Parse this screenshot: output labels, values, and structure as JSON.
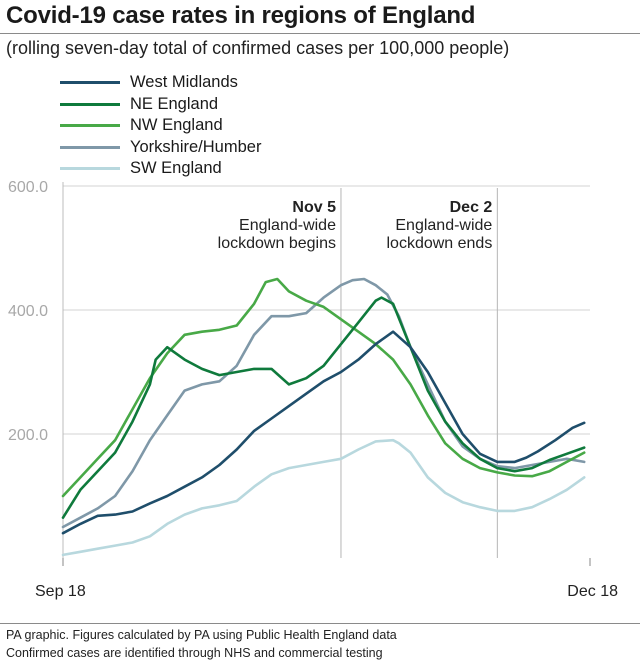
{
  "chart_data": {
    "type": "line",
    "title": "Covid-19 case rates in regions of England",
    "subtitle": "(rolling seven-day total of confirmed cases per 100,000 people)",
    "xlabel": "",
    "ylabel": "",
    "ylim": [
      0,
      600
    ],
    "xlim": [
      0,
      91
    ],
    "y_ticks": [
      {
        "value": 200,
        "label": "200.0"
      },
      {
        "value": 400,
        "label": "400.0"
      },
      {
        "value": 600,
        "label": "600.0"
      }
    ],
    "x_ticks": [
      {
        "day": 0,
        "label": "Sep 18"
      },
      {
        "day": 91,
        "label": "Dec 18"
      }
    ],
    "annotations": [
      {
        "day": 48,
        "bold": "Nov 5",
        "line1": "England-wide",
        "line2": "lockdown begins"
      },
      {
        "day": 75,
        "bold": "Dec 2",
        "line1": "England-wide",
        "line2": "lockdown ends"
      }
    ],
    "series": [
      {
        "name": "West Midlands",
        "color": "#1f4e6b",
        "x": [
          0,
          3,
          6,
          9,
          12,
          15,
          18,
          21,
          24,
          27,
          30,
          33,
          36,
          39,
          42,
          45,
          48,
          51,
          54,
          57,
          60,
          63,
          66,
          69,
          72,
          75,
          78,
          80,
          82,
          85,
          88,
          90
        ],
        "y": [
          40,
          55,
          68,
          70,
          75,
          88,
          100,
          115,
          130,
          150,
          175,
          205,
          225,
          245,
          265,
          285,
          300,
          320,
          345,
          365,
          340,
          300,
          250,
          200,
          168,
          155,
          155,
          162,
          172,
          190,
          210,
          218
        ]
      },
      {
        "name": "NE England",
        "color": "#0f7a3c",
        "x": [
          0,
          3,
          6,
          9,
          12,
          15,
          16,
          18,
          21,
          24,
          27,
          30,
          33,
          36,
          39,
          42,
          45,
          48,
          51,
          54,
          55,
          57,
          60,
          63,
          66,
          69,
          72,
          75,
          78,
          81,
          84,
          87,
          90
        ],
        "y": [
          65,
          110,
          140,
          170,
          220,
          280,
          320,
          340,
          320,
          305,
          295,
          300,
          305,
          305,
          280,
          290,
          310,
          345,
          380,
          415,
          420,
          410,
          340,
          270,
          220,
          185,
          160,
          145,
          140,
          145,
          158,
          168,
          178
        ]
      },
      {
        "name": "NW England",
        "color": "#48a947",
        "x": [
          0,
          3,
          6,
          9,
          12,
          15,
          18,
          21,
          24,
          27,
          30,
          33,
          35,
          37,
          39,
          42,
          45,
          48,
          51,
          54,
          57,
          60,
          63,
          66,
          69,
          72,
          75,
          78,
          81,
          84,
          87,
          90
        ],
        "y": [
          100,
          130,
          160,
          190,
          240,
          290,
          330,
          360,
          365,
          368,
          375,
          410,
          445,
          450,
          430,
          415,
          405,
          385,
          365,
          345,
          320,
          280,
          230,
          185,
          160,
          145,
          138,
          133,
          132,
          140,
          155,
          170
        ]
      },
      {
        "name": "Yorkshire/Humber",
        "color": "#7f98a8",
        "x": [
          0,
          3,
          6,
          9,
          12,
          15,
          18,
          21,
          24,
          27,
          30,
          33,
          36,
          39,
          42,
          45,
          48,
          50,
          52,
          54,
          56,
          58,
          60,
          63,
          66,
          69,
          72,
          75,
          78,
          81,
          84,
          87,
          90
        ],
        "y": [
          50,
          65,
          80,
          100,
          140,
          190,
          230,
          270,
          280,
          285,
          310,
          360,
          390,
          390,
          395,
          420,
          440,
          448,
          450,
          440,
          425,
          390,
          340,
          280,
          220,
          180,
          160,
          148,
          145,
          150,
          155,
          160,
          155
        ]
      },
      {
        "name": "SW England",
        "color": "#b8d8de",
        "x": [
          0,
          3,
          6,
          9,
          12,
          15,
          18,
          21,
          24,
          27,
          30,
          33,
          36,
          39,
          42,
          45,
          48,
          51,
          54,
          57,
          58,
          60,
          63,
          66,
          69,
          72,
          75,
          78,
          81,
          84,
          87,
          90
        ],
        "y": [
          5,
          10,
          15,
          20,
          25,
          35,
          55,
          70,
          80,
          85,
          92,
          115,
          135,
          145,
          150,
          155,
          160,
          175,
          188,
          190,
          185,
          170,
          130,
          105,
          90,
          82,
          76,
          76,
          82,
          95,
          110,
          130
        ]
      }
    ]
  },
  "footnotes": [
    "PA graphic. Figures calculated by PA using Public Health England data",
    "Confirmed cases are identified through NHS and commercial testing"
  ]
}
